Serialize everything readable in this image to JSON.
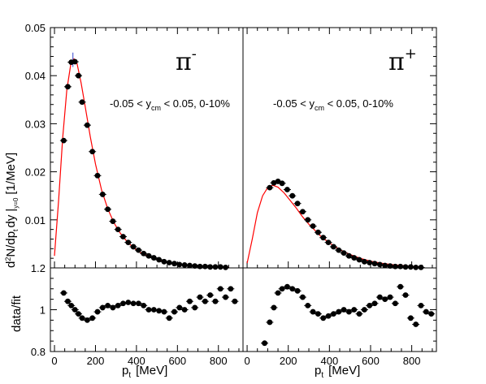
{
  "chart_data": [
    {
      "type": "scatter",
      "panel": "pi-minus spectrum",
      "particle_label": "π",
      "particle_charge": "-",
      "annotation": "-0.05 < y",
      "annotation_sub": "cm",
      "annotation_tail": " < 0.05, 0-10%",
      "ylabel": "d",
      "ylabel_sup": "2",
      "ylabel_mid": "N/dp",
      "ylabel_sub": "t",
      "ylabel_tail": "dy",
      "ylabel_bar_sub": "y=0",
      "ylabel_unit": "[1/MeV]",
      "ylim": [
        0,
        0.05
      ],
      "yticks": [
        "0.05",
        "0.04",
        "0.03",
        "0.02",
        "0.01"
      ],
      "xlim": [
        -20,
        920
      ],
      "grid": false,
      "data_color": "#000000",
      "fit_color": "#ff0000",
      "points": [
        [
          45,
          0.0265
        ],
        [
          65,
          0.0377
        ],
        [
          82,
          0.0428
        ],
        [
          100,
          0.0429
        ],
        [
          117,
          0.04
        ],
        [
          135,
          0.0345
        ],
        [
          160,
          0.0297
        ],
        [
          185,
          0.0242
        ],
        [
          210,
          0.0192
        ],
        [
          235,
          0.0153
        ],
        [
          260,
          0.0122
        ],
        [
          285,
          0.0097
        ],
        [
          310,
          0.008
        ],
        [
          335,
          0.0065
        ],
        [
          360,
          0.0053
        ],
        [
          385,
          0.0044
        ],
        [
          410,
          0.0037
        ],
        [
          435,
          0.003
        ],
        [
          460,
          0.0025
        ],
        [
          485,
          0.0021
        ],
        [
          510,
          0.0017
        ],
        [
          535,
          0.0013
        ],
        [
          560,
          0.0011
        ],
        [
          585,
          0.0009
        ],
        [
          610,
          0.0007
        ],
        [
          635,
          0.0006
        ],
        [
          660,
          0.0005
        ],
        [
          685,
          0.0004
        ],
        [
          710,
          0.0003
        ],
        [
          735,
          0.0003
        ],
        [
          760,
          0.0002
        ],
        [
          785,
          0.0002
        ],
        [
          810,
          0.0002
        ],
        [
          835,
          0.0001
        ]
      ],
      "fit": [
        [
          0,
          0.0025
        ],
        [
          20,
          0.014
        ],
        [
          40,
          0.027
        ],
        [
          60,
          0.037
        ],
        [
          80,
          0.0425
        ],
        [
          95,
          0.0435
        ],
        [
          110,
          0.0425
        ],
        [
          130,
          0.0385
        ],
        [
          150,
          0.0335
        ],
        [
          175,
          0.0272
        ],
        [
          200,
          0.0216
        ],
        [
          230,
          0.0162
        ],
        [
          260,
          0.0123
        ],
        [
          290,
          0.0094
        ],
        [
          320,
          0.0073
        ],
        [
          350,
          0.0057
        ],
        [
          380,
          0.0044
        ],
        [
          420,
          0.0032
        ],
        [
          460,
          0.0024
        ],
        [
          500,
          0.0017
        ],
        [
          550,
          0.0012
        ],
        [
          600,
          0.0008
        ],
        [
          650,
          0.0006
        ],
        [
          700,
          0.0004
        ],
        [
          750,
          0.0003
        ],
        [
          800,
          0.0002
        ],
        [
          850,
          0.0001
        ]
      ]
    },
    {
      "type": "scatter",
      "panel": "pi-plus spectrum",
      "particle_label": "π",
      "particle_charge": "+",
      "annotation": "-0.05 < y",
      "annotation_sub": "cm",
      "annotation_tail": " < 0.05, 0-10%",
      "ylim": [
        0,
        0.05
      ],
      "xlim": [
        -20,
        920
      ],
      "grid": false,
      "points": [
        [
          110,
          0.0167
        ],
        [
          130,
          0.0177
        ],
        [
          150,
          0.018
        ],
        [
          170,
          0.0176
        ],
        [
          195,
          0.0163
        ],
        [
          220,
          0.015
        ],
        [
          245,
          0.0134
        ],
        [
          270,
          0.0117
        ],
        [
          295,
          0.01
        ],
        [
          320,
          0.0087
        ],
        [
          345,
          0.0074
        ],
        [
          370,
          0.0063
        ],
        [
          395,
          0.0053
        ],
        [
          420,
          0.0044
        ],
        [
          445,
          0.0037
        ],
        [
          470,
          0.0031
        ],
        [
          495,
          0.0025
        ],
        [
          520,
          0.0021
        ],
        [
          545,
          0.0017
        ],
        [
          570,
          0.0013
        ],
        [
          595,
          0.0011
        ],
        [
          620,
          0.0009
        ],
        [
          645,
          0.0007
        ],
        [
          670,
          0.0005
        ],
        [
          695,
          0.0004
        ],
        [
          720,
          0.0003
        ],
        [
          745,
          0.0003
        ],
        [
          770,
          0.0002
        ],
        [
          795,
          0.0002
        ],
        [
          820,
          0.0001
        ],
        [
          845,
          0.0001
        ]
      ],
      "fit": [
        [
          0,
          0.001
        ],
        [
          25,
          0.006
        ],
        [
          50,
          0.0115
        ],
        [
          75,
          0.015
        ],
        [
          100,
          0.0167
        ],
        [
          125,
          0.0172
        ],
        [
          150,
          0.0168
        ],
        [
          180,
          0.0156
        ],
        [
          210,
          0.014
        ],
        [
          240,
          0.0124
        ],
        [
          270,
          0.0106
        ],
        [
          300,
          0.0091
        ],
        [
          330,
          0.0078
        ],
        [
          360,
          0.0065
        ],
        [
          400,
          0.0052
        ],
        [
          450,
          0.0038
        ],
        [
          500,
          0.0028
        ],
        [
          550,
          0.002
        ],
        [
          600,
          0.0014
        ],
        [
          650,
          0.001
        ],
        [
          700,
          0.0007
        ],
        [
          750,
          0.0005
        ],
        [
          800,
          0.0003
        ],
        [
          850,
          0.0002
        ]
      ]
    },
    {
      "type": "scatter",
      "panel": "pi-minus ratio",
      "ylabel": "data/fit",
      "xlabel": "p",
      "xlabel_sub": "t",
      "xlabel_unit": "[MeV]",
      "ylim": [
        0.8,
        1.2
      ],
      "yticks": [
        "1.2",
        "1",
        "0.8"
      ],
      "xticks": [
        "0",
        "200",
        "400",
        "600",
        "800"
      ],
      "xlim": [
        -20,
        920
      ],
      "points": [
        [
          45,
          1.08
        ],
        [
          65,
          1.04
        ],
        [
          82,
          1.02
        ],
        [
          100,
          1.0
        ],
        [
          117,
          0.98
        ],
        [
          135,
          0.96
        ],
        [
          160,
          0.95
        ],
        [
          185,
          0.96
        ],
        [
          210,
          0.99
        ],
        [
          235,
          1.01
        ],
        [
          260,
          1.02
        ],
        [
          285,
          1.01
        ],
        [
          310,
          1.02
        ],
        [
          335,
          1.03
        ],
        [
          360,
          1.035
        ],
        [
          385,
          1.03
        ],
        [
          410,
          1.03
        ],
        [
          435,
          1.02
        ],
        [
          460,
          1.0
        ],
        [
          485,
          1.0
        ],
        [
          510,
          0.995
        ],
        [
          535,
          0.99
        ],
        [
          560,
          0.96
        ],
        [
          585,
          0.99
        ],
        [
          610,
          1.01
        ],
        [
          635,
          1.0
        ],
        [
          660,
          1.04
        ],
        [
          685,
          1.01
        ],
        [
          710,
          1.06
        ],
        [
          735,
          1.04
        ],
        [
          760,
          1.07
        ],
        [
          785,
          1.04
        ],
        [
          810,
          1.1
        ],
        [
          835,
          1.06
        ],
        [
          860,
          1.1
        ],
        [
          880,
          1.04
        ]
      ]
    },
    {
      "type": "scatter",
      "panel": "pi-plus ratio",
      "xlabel": "p",
      "xlabel_sub": "t",
      "xlabel_unit": "[MeV]",
      "ylim": [
        0.8,
        1.2
      ],
      "xticks": [
        "0",
        "200",
        "400",
        "600",
        "800"
      ],
      "xlim": [
        -20,
        920
      ],
      "points": [
        [
          85,
          0.84
        ],
        [
          110,
          0.94
        ],
        [
          130,
          1.01
        ],
        [
          150,
          1.08
        ],
        [
          170,
          1.1
        ],
        [
          195,
          1.11
        ],
        [
          220,
          1.1
        ],
        [
          245,
          1.09
        ],
        [
          270,
          1.06
        ],
        [
          295,
          1.02
        ],
        [
          320,
          0.99
        ],
        [
          345,
          0.98
        ],
        [
          370,
          0.96
        ],
        [
          395,
          0.97
        ],
        [
          420,
          0.98
        ],
        [
          445,
          0.99
        ],
        [
          470,
          1.0
        ],
        [
          495,
          0.99
        ],
        [
          520,
          1.0
        ],
        [
          545,
          0.98
        ],
        [
          570,
          1.0
        ],
        [
          595,
          1.02
        ],
        [
          620,
          1.03
        ],
        [
          645,
          1.06
        ],
        [
          670,
          1.05
        ],
        [
          695,
          1.06
        ],
        [
          720,
          1.03
        ],
        [
          745,
          1.11
        ],
        [
          770,
          1.07
        ],
        [
          795,
          0.96
        ],
        [
          820,
          0.93
        ],
        [
          845,
          1.02
        ],
        [
          870,
          0.99
        ],
        [
          895,
          0.98
        ]
      ]
    }
  ]
}
